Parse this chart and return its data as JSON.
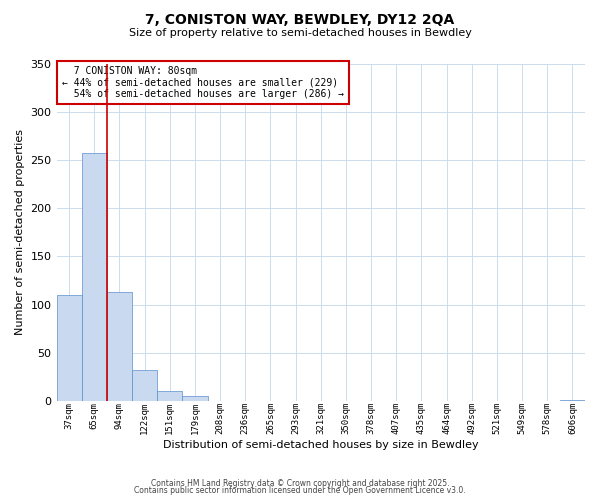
{
  "title": "7, CONISTON WAY, BEWDLEY, DY12 2QA",
  "subtitle": "Size of property relative to semi-detached houses in Bewdley",
  "xlabel": "Distribution of semi-detached houses by size in Bewdley",
  "ylabel": "Number of semi-detached properties",
  "bin_labels": [
    "37sqm",
    "65sqm",
    "94sqm",
    "122sqm",
    "151sqm",
    "179sqm",
    "208sqm",
    "236sqm",
    "265sqm",
    "293sqm",
    "321sqm",
    "350sqm",
    "378sqm",
    "407sqm",
    "435sqm",
    "464sqm",
    "492sqm",
    "521sqm",
    "549sqm",
    "578sqm",
    "606sqm"
  ],
  "bar_values": [
    110,
    258,
    113,
    32,
    10,
    5,
    0,
    0,
    0,
    0,
    0,
    0,
    0,
    0,
    0,
    0,
    0,
    0,
    0,
    0,
    1
  ],
  "bar_color": "#c9daf0",
  "bar_edge_color": "#5b8ecf",
  "ylim": [
    0,
    350
  ],
  "yticks": [
    0,
    50,
    100,
    150,
    200,
    250,
    300,
    350
  ],
  "property_label": "7 CONISTON WAY: 80sqm",
  "pct_smaller": 44,
  "n_smaller": 229,
  "pct_larger": 54,
  "n_larger": 286,
  "vline_color": "#cc0000",
  "annotation_box_color": "#cc0000",
  "footer_line1": "Contains HM Land Registry data © Crown copyright and database right 2025.",
  "footer_line2": "Contains public sector information licensed under the Open Government Licence v3.0.",
  "background_color": "#ffffff",
  "grid_color": "#ccdcec"
}
